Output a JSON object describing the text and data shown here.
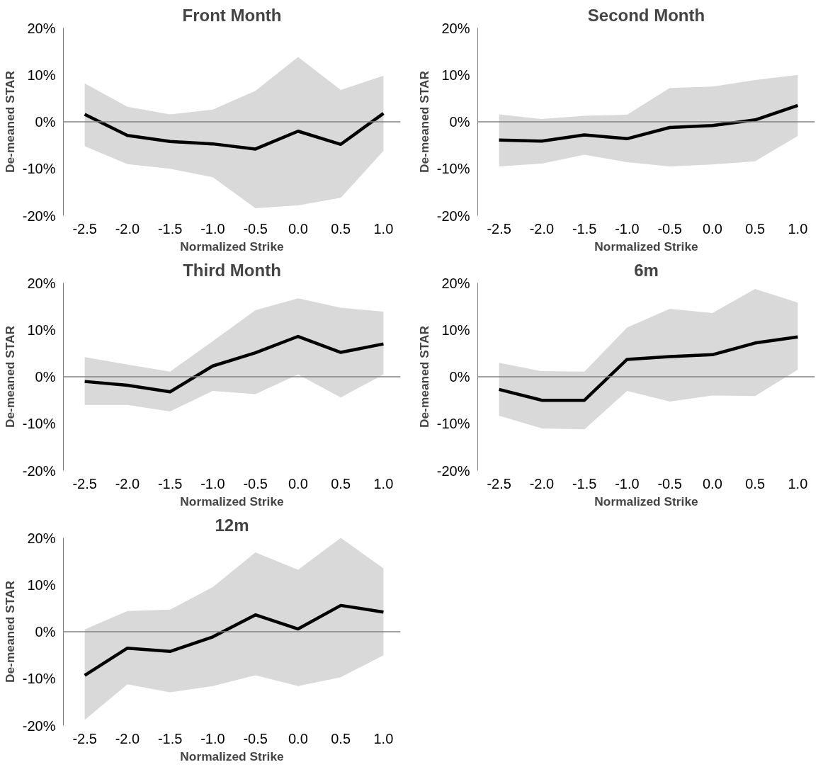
{
  "chart_data": [
    {
      "type": "line",
      "title": "Front Month",
      "xlabel": "Normalized Strike",
      "ylabel": "De-meaned STAR",
      "x": [
        -2.5,
        -2.0,
        -1.5,
        -1.0,
        -0.5,
        0.0,
        0.5,
        1.0
      ],
      "xlim": [
        -2.75,
        1.2
      ],
      "xticks": [
        {
          "value": -2.5,
          "label": "-2.5"
        },
        {
          "value": -2.0,
          "label": "-2.0"
        },
        {
          "value": -1.5,
          "label": "-1.5"
        },
        {
          "value": -1.0,
          "label": "-1.0"
        },
        {
          "value": -0.5,
          "label": "-0.5"
        },
        {
          "value": 0.0,
          "label": "0.0"
        },
        {
          "value": 0.5,
          "label": "0.5"
        },
        {
          "value": 1.0,
          "label": "1.0"
        }
      ],
      "ylim": [
        -20,
        20
      ],
      "yticks": [
        {
          "value": -20,
          "label": "-20%"
        },
        {
          "value": -10,
          "label": "-10%"
        },
        {
          "value": 0,
          "label": "0%"
        },
        {
          "value": 10,
          "label": "10%"
        },
        {
          "value": 20,
          "label": "20%"
        }
      ],
      "grid": false,
      "ref_lines": [
        {
          "axis": "y",
          "value": 0,
          "color": "#808080"
        }
      ],
      "series": [
        {
          "color": "#000000",
          "values": [
            1.6,
            -2.9,
            -4.2,
            -4.7,
            -5.8,
            -2.0,
            -4.8,
            1.8
          ],
          "lower": [
            -5.2,
            -9.0,
            -10.0,
            -11.8,
            -18.4,
            -17.8,
            -16.2,
            -6.2
          ],
          "upper": [
            8.2,
            3.2,
            1.6,
            2.6,
            6.6,
            13.8,
            6.8,
            9.8
          ]
        }
      ]
    },
    {
      "type": "line",
      "title": "Second Month",
      "xlabel": "Normalized Strike",
      "ylabel": "De-meaned STAR",
      "x": [
        -2.5,
        -2.0,
        -1.5,
        -1.0,
        -0.5,
        0.0,
        0.5,
        1.0
      ],
      "xlim": [
        -2.75,
        1.2
      ],
      "xticks": [
        {
          "value": -2.5,
          "label": "-2.5"
        },
        {
          "value": -2.0,
          "label": "-2.0"
        },
        {
          "value": -1.5,
          "label": "-1.5"
        },
        {
          "value": -1.0,
          "label": "-1.0"
        },
        {
          "value": -0.5,
          "label": "-0.5"
        },
        {
          "value": 0.0,
          "label": "0.0"
        },
        {
          "value": 0.5,
          "label": "0.5"
        },
        {
          "value": 1.0,
          "label": "1.0"
        }
      ],
      "ylim": [
        -20,
        20
      ],
      "yticks": [
        {
          "value": -20,
          "label": "-20%"
        },
        {
          "value": -10,
          "label": "-10%"
        },
        {
          "value": 0,
          "label": "0%"
        },
        {
          "value": 10,
          "label": "10%"
        },
        {
          "value": 20,
          "label": "20%"
        }
      ],
      "grid": false,
      "ref_lines": [
        {
          "axis": "y",
          "value": 0,
          "color": "#808080"
        }
      ],
      "series": [
        {
          "color": "#000000",
          "values": [
            -3.9,
            -4.1,
            -2.8,
            -3.6,
            -1.2,
            -0.8,
            0.4,
            3.5
          ],
          "lower": [
            -9.5,
            -8.9,
            -7.0,
            -8.6,
            -9.5,
            -9.1,
            -8.4,
            -3.0
          ],
          "upper": [
            1.6,
            0.6,
            1.3,
            1.5,
            7.2,
            7.5,
            8.9,
            10.0
          ]
        }
      ]
    },
    {
      "type": "line",
      "title": "Third Month",
      "xlabel": "Normalized Strike",
      "ylabel": "De-meaned STAR",
      "x": [
        -2.5,
        -2.0,
        -1.5,
        -1.0,
        -0.5,
        0.0,
        0.5,
        1.0
      ],
      "xlim": [
        -2.75,
        1.2
      ],
      "xticks": [
        {
          "value": -2.5,
          "label": "-2.5"
        },
        {
          "value": -2.0,
          "label": "-2.0"
        },
        {
          "value": -1.5,
          "label": "-1.5"
        },
        {
          "value": -1.0,
          "label": "-1.0"
        },
        {
          "value": -0.5,
          "label": "-0.5"
        },
        {
          "value": 0.0,
          "label": "0.0"
        },
        {
          "value": 0.5,
          "label": "0.5"
        },
        {
          "value": 1.0,
          "label": "1.0"
        }
      ],
      "ylim": [
        -20,
        20
      ],
      "yticks": [
        {
          "value": -20,
          "label": "-20%"
        },
        {
          "value": -10,
          "label": "-10%"
        },
        {
          "value": 0,
          "label": "0%"
        },
        {
          "value": 10,
          "label": "10%"
        },
        {
          "value": 20,
          "label": "20%"
        }
      ],
      "grid": false,
      "ref_lines": [
        {
          "axis": "y",
          "value": 0,
          "color": "#808080"
        }
      ],
      "series": [
        {
          "color": "#000000",
          "values": [
            -1.0,
            -1.8,
            -3.2,
            2.3,
            5.1,
            8.6,
            5.2,
            7.0
          ],
          "lower": [
            -6.0,
            -6.0,
            -7.4,
            -3.0,
            -3.7,
            0.5,
            -4.4,
            0.5
          ],
          "upper": [
            4.2,
            2.6,
            1.1,
            7.6,
            14.2,
            16.7,
            14.7,
            13.9
          ]
        }
      ]
    },
    {
      "type": "line",
      "title": "6m",
      "xlabel": "Normalized Strike",
      "ylabel": "De-meaned STAR",
      "x": [
        -2.5,
        -2.0,
        -1.5,
        -1.0,
        -0.5,
        0.0,
        0.5,
        1.0
      ],
      "xlim": [
        -2.75,
        1.2
      ],
      "xticks": [
        {
          "value": -2.5,
          "label": "-2.5"
        },
        {
          "value": -2.0,
          "label": "-2.0"
        },
        {
          "value": -1.5,
          "label": "-1.5"
        },
        {
          "value": -1.0,
          "label": "-1.0"
        },
        {
          "value": -0.5,
          "label": "-0.5"
        },
        {
          "value": 0.0,
          "label": "0.0"
        },
        {
          "value": 0.5,
          "label": "0.5"
        },
        {
          "value": 1.0,
          "label": "1.0"
        }
      ],
      "ylim": [
        -20,
        20
      ],
      "yticks": [
        {
          "value": -20,
          "label": "-20%"
        },
        {
          "value": -10,
          "label": "-10%"
        },
        {
          "value": 0,
          "label": "0%"
        },
        {
          "value": 10,
          "label": "10%"
        },
        {
          "value": 20,
          "label": "20%"
        }
      ],
      "grid": false,
      "ref_lines": [
        {
          "axis": "y",
          "value": 0,
          "color": "#808080"
        }
      ],
      "series": [
        {
          "color": "#000000",
          "values": [
            -2.7,
            -5.0,
            -5.0,
            3.7,
            4.3,
            4.7,
            7.2,
            8.5
          ],
          "lower": [
            -8.3,
            -11.0,
            -11.2,
            -3.0,
            -5.3,
            -4.0,
            -4.1,
            1.5
          ],
          "upper": [
            3.0,
            1.2,
            1.1,
            10.5,
            14.5,
            13.6,
            18.7,
            15.8
          ]
        }
      ]
    },
    {
      "type": "line",
      "title": "12m",
      "xlabel": "Normalized Strike",
      "ylabel": "De-meaned STAR",
      "x": [
        -2.5,
        -2.0,
        -1.5,
        -1.0,
        -0.5,
        0.0,
        0.5,
        1.0
      ],
      "xlim": [
        -2.75,
        1.2
      ],
      "xticks": [
        {
          "value": -2.5,
          "label": "-2.5"
        },
        {
          "value": -2.0,
          "label": "-2.0"
        },
        {
          "value": -1.5,
          "label": "-1.5"
        },
        {
          "value": -1.0,
          "label": "-1.0"
        },
        {
          "value": -0.5,
          "label": "-0.5"
        },
        {
          "value": 0.0,
          "label": "0.0"
        },
        {
          "value": 0.5,
          "label": "0.5"
        },
        {
          "value": 1.0,
          "label": "1.0"
        }
      ],
      "ylim": [
        -20,
        20
      ],
      "yticks": [
        {
          "value": -20,
          "label": "-20%"
        },
        {
          "value": -10,
          "label": "-10%"
        },
        {
          "value": 0,
          "label": "0%"
        },
        {
          "value": 10,
          "label": "10%"
        },
        {
          "value": 20,
          "label": "20%"
        }
      ],
      "grid": false,
      "ref_lines": [
        {
          "axis": "y",
          "value": 0,
          "color": "#808080"
        }
      ],
      "series": [
        {
          "color": "#000000",
          "values": [
            -9.3,
            -3.5,
            -4.2,
            -1.1,
            3.6,
            0.6,
            5.6,
            4.2
          ],
          "lower": [
            -18.8,
            -11.2,
            -12.9,
            -11.6,
            -9.3,
            -11.6,
            -9.7,
            -5.0
          ],
          "upper": [
            0.5,
            4.4,
            4.7,
            9.5,
            16.9,
            13.2,
            20.0,
            13.5
          ]
        }
      ]
    }
  ]
}
